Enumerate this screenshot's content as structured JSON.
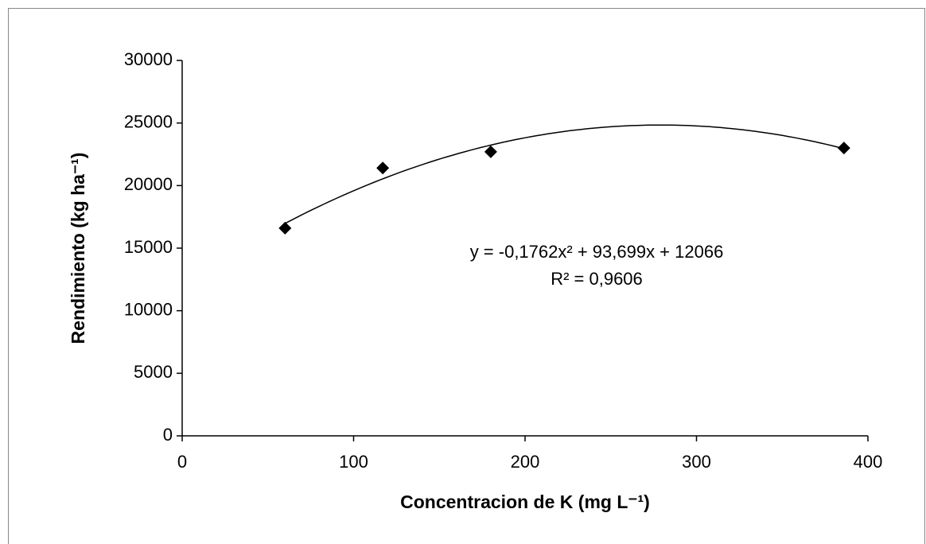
{
  "chart_data": {
    "type": "scatter",
    "x_label": "Concentracion de K (mg L⁻¹)",
    "y_label": "Rendimiento (kg ha⁻¹)",
    "series": [
      {
        "x": [
          60,
          117,
          180,
          386
        ],
        "values": [
          16600,
          21400,
          22700,
          23000
        ],
        "color": "#000000"
      }
    ],
    "trendline": {
      "type": "polynomial",
      "order": 2,
      "equation": "y = -0,1762x² + 93,699x + 12066",
      "r_squared": "R² = 0,9606"
    },
    "xlim": [
      0,
      400
    ],
    "xticks": [
      0,
      100,
      200,
      300,
      400
    ],
    "ylim": [
      0,
      30000
    ],
    "yticks": [
      0,
      5000,
      10000,
      15000,
      20000,
      25000,
      30000
    ],
    "grid": false
  }
}
